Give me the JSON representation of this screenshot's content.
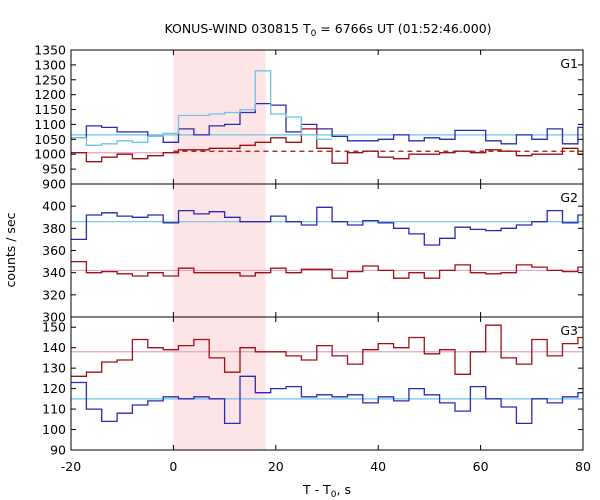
{
  "chart_data": {
    "type": "line",
    "title": {
      "main": "KONUS-WIND 030815 T",
      "sub": "0",
      "rest": " = 6766s UT (01:52:46.000)"
    },
    "xlabel": {
      "main": "T - T",
      "sub": "0",
      "rest": ", s"
    },
    "ylabel": "counts / sec",
    "xlim": [
      -20,
      80
    ],
    "xticks": [
      -20,
      0,
      20,
      40,
      60,
      80
    ],
    "x_tick_labels": [
      "-20",
      "0",
      "20",
      "40",
      "60",
      "80"
    ],
    "shaded_interval": [
      0,
      18
    ],
    "colors": {
      "blue": "#2b2bb0",
      "red": "#a01010",
      "fit_blue": "#6ec3e8",
      "fit_pink": "#e7a3c8",
      "shade": "#fde4e6"
    },
    "panels": [
      {
        "label": "G1",
        "ylim": [
          900,
          1350
        ],
        "yticks": [
          900,
          950,
          1000,
          1050,
          1100,
          1150,
          1200,
          1250,
          1300,
          1350
        ],
        "y_tick_labels": [
          "900",
          "950",
          "1000",
          "1050",
          "1100",
          "1150",
          "1200",
          "1250",
          "1300",
          "1350"
        ],
        "series": [
          {
            "color": "blue",
            "x0": -20,
            "dx": 3,
            "values": [
              1055,
              1095,
              1090,
              1075,
              1075,
              1060,
              1040,
              1085,
              1065,
              1095,
              1100,
              1140,
              1170,
              1165,
              1075,
              1100,
              1085,
              1060,
              1045,
              1045,
              1050,
              1065,
              1045,
              1055,
              1050,
              1080,
              1080,
              1045,
              1035,
              1065,
              1050,
              1085,
              1035,
              1090
            ]
          },
          {
            "color": "red",
            "x0": -20,
            "dx": 3,
            "values": [
              1005,
              975,
              990,
              1000,
              985,
              995,
              1005,
              1015,
              1015,
              1020,
              1020,
              1030,
              1040,
              1055,
              1040,
              1085,
              1020,
              970,
              1005,
              1010,
              990,
              985,
              1000,
              1000,
              1005,
              1010,
              1005,
              1015,
              1010,
              995,
              1000,
              1000,
              1020,
              1000
            ]
          },
          {
            "color": "fit_blue",
            "x0": -20,
            "dx": 3,
            "values": [
              1055,
              1030,
              1035,
              1045,
              1040,
              1060,
              1070,
              1130,
              1130,
              1135,
              1140,
              1150,
              1280,
              1135,
              1125,
              1065,
              1050
            ]
          }
        ],
        "fits": [
          {
            "color": "fit_blue",
            "y": 1065,
            "x": [
              -20,
              80
            ],
            "style": "solid"
          },
          {
            "color": "red",
            "y": 1010,
            "x": [
              0,
              80
            ],
            "style": "dashed"
          },
          {
            "color": "fit_pink",
            "y": 1005,
            "x": [
              -20,
              0
            ],
            "style": "solid"
          }
        ]
      },
      {
        "label": "G2",
        "ylim": [
          300,
          420
        ],
        "yticks": [
          300,
          320,
          340,
          360,
          380,
          400
        ],
        "y_tick_labels": [
          "300",
          "320",
          "340",
          "360",
          "380",
          "400"
        ],
        "series": [
          {
            "color": "blue",
            "x0": -20,
            "dx": 3,
            "values": [
              370,
              392,
              394,
              391,
              390,
              392,
              385,
              396,
              393,
              395,
              390,
              386,
              386,
              391,
              386,
              383,
              399,
              386,
              383,
              387,
              385,
              380,
              375,
              365,
              371,
              381,
              379,
              378,
              380,
              383,
              386,
              396,
              385,
              392
            ]
          },
          {
            "color": "red",
            "x0": -20,
            "dx": 3,
            "values": [
              350,
              340,
              341,
              339,
              337,
              340,
              337,
              344,
              340,
              340,
              340,
              337,
              340,
              344,
              340,
              343,
              343,
              335,
              341,
              346,
              342,
              335,
              340,
              335,
              342,
              347,
              340,
              339,
              340,
              347,
              345,
              342,
              341,
              345
            ]
          }
        ],
        "fits": [
          {
            "color": "fit_blue",
            "y": 386,
            "x": [
              -20,
              80
            ],
            "style": "solid"
          },
          {
            "color": "fit_pink",
            "y": 342,
            "x": [
              -20,
              80
            ],
            "style": "solid"
          }
        ]
      },
      {
        "label": "G3",
        "ylim": [
          90,
          155
        ],
        "yticks": [
          90,
          100,
          110,
          120,
          130,
          140,
          150
        ],
        "y_tick_labels": [
          "90",
          "100",
          "110",
          "120",
          "130",
          "140",
          "150"
        ],
        "series": [
          {
            "color": "blue",
            "x0": -20,
            "dx": 3,
            "values": [
              123,
              110,
              104,
              108,
              112,
              114,
              116,
              115,
              116,
              115,
              103,
              126,
              118,
              120,
              121,
              116,
              117,
              116,
              117,
              113,
              116,
              114,
              120,
              117,
              113,
              109,
              121,
              115,
              111,
              103,
              115,
              113,
              116,
              118
            ]
          },
          {
            "color": "red",
            "x0": -20,
            "dx": 3,
            "values": [
              126,
              128,
              133,
              134,
              144,
              140,
              139,
              141,
              144,
              135,
              128,
              140,
              138,
              138,
              136,
              134,
              141,
              136,
              132,
              139,
              142,
              140,
              145,
              137,
              139,
              127,
              138,
              151,
              135,
              132,
              144,
              136,
              142,
              145
            ]
          }
        ],
        "fits": [
          {
            "color": "fit_blue",
            "y": 115,
            "x": [
              -20,
              80
            ],
            "style": "solid"
          },
          {
            "color": "fit_pink",
            "y": 138,
            "x": [
              -20,
              80
            ],
            "style": "solid"
          }
        ]
      }
    ]
  }
}
